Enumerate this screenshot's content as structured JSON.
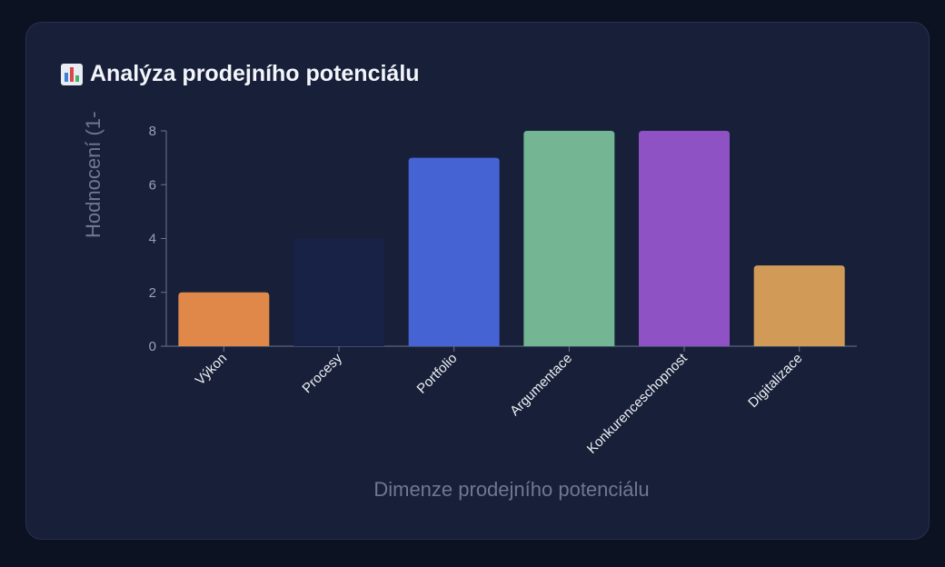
{
  "title": "Analýza prodejního potenciálu",
  "title_icon": "bar-chart-icon",
  "colors": {
    "background": "#0d1222",
    "card": "#172038",
    "axis": "#6a7391",
    "tick_text": "#9aa1b6",
    "label_text": "#6f7793"
  },
  "chart_data": {
    "type": "bar",
    "categories": [
      "Výkon",
      "Procesy",
      "Portfolio",
      "Argumentace",
      "Konkurenceschopnost",
      "Digitalizace"
    ],
    "values": [
      2,
      4,
      7,
      8,
      8,
      3
    ],
    "colors": [
      "#e0874a",
      "#172246",
      "#4663d4",
      "#74b593",
      "#8e52c4",
      "#d19a57"
    ],
    "ylabel": "Hodnocení (1-",
    "xlabel": "Dimenze prodejního potenciálu",
    "ylim": [
      0,
      8
    ],
    "yticks": [
      0,
      2,
      4,
      6,
      8
    ],
    "grid": false,
    "legend": "none"
  }
}
